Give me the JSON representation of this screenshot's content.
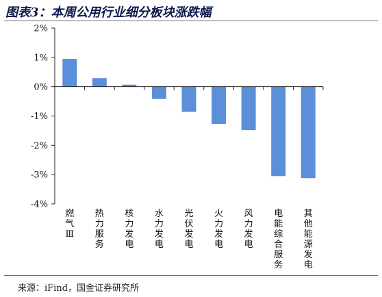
{
  "title": "图表3：本周公用行业细分板块涨跌幅",
  "source": "来源：iFind，国金证券研究所",
  "chart_data": {
    "type": "bar",
    "title": "",
    "xlabel": "",
    "ylabel": "",
    "ylim": [
      -4,
      2
    ],
    "yticks": [
      2,
      1,
      0,
      -1,
      -2,
      -3,
      -4
    ],
    "ytick_labels": [
      "2%",
      "1%",
      "0%",
      "-1%",
      "-2%",
      "-3%",
      "-4%"
    ],
    "grid": false,
    "legend": "none",
    "bar_color": "#5b8fd9",
    "categories": [
      "燃气Ⅲ",
      "热力服务",
      "核力发电",
      "水力发电",
      "光伏发电",
      "火力发电",
      "风力发电",
      "电能综合服务",
      "其他能源发电"
    ],
    "values": [
      0.95,
      0.29,
      0.07,
      -0.42,
      -0.86,
      -1.27,
      -1.48,
      -3.05,
      -3.12
    ]
  }
}
